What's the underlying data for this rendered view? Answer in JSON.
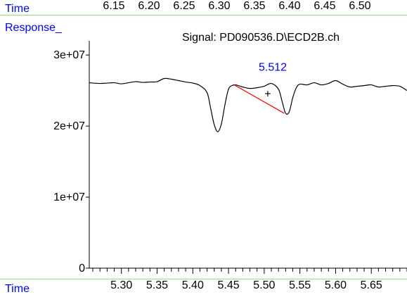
{
  "header": {
    "time_label": "Time",
    "response_label": "Response_",
    "top_ticks": [
      "6.15",
      "6.20",
      "6.25",
      "6.30",
      "6.35",
      "6.40",
      "6.45",
      "6.50"
    ]
  },
  "footer": {
    "time_label": "Time"
  },
  "colors": {
    "label_blue": "#0000ee",
    "trace": "#000000",
    "baseline": "#ee0000",
    "rule": "#8ee28e"
  },
  "chart_data": {
    "type": "line",
    "title": "Signal: PD090536.D\\ECD2B.ch",
    "xlabel": "Time",
    "ylabel": "Response_",
    "xlim": [
      5.255,
      5.7
    ],
    "ylim": [
      0,
      32000000
    ],
    "y_ticks": [
      0,
      10000000,
      20000000,
      30000000
    ],
    "y_tick_labels": [
      "0",
      "1e+07",
      "2e+07",
      "3e+07"
    ],
    "x_tick_labels": [
      "5.30",
      "5.35",
      "5.40",
      "5.45",
      "5.50",
      "5.55",
      "5.60",
      "5.65"
    ],
    "x_ticks": [
      5.3,
      5.35,
      5.4,
      5.45,
      5.5,
      5.55,
      5.6,
      5.65
    ],
    "x_minor_step": 0.01,
    "series": [
      {
        "x": [
          5.255,
          5.27,
          5.28,
          5.29,
          5.3,
          5.31,
          5.32,
          5.33,
          5.34,
          5.35,
          5.36,
          5.37,
          5.38,
          5.39,
          5.4,
          5.41,
          5.42,
          5.425,
          5.43,
          5.435,
          5.44,
          5.445,
          5.45,
          5.455,
          5.46,
          5.47,
          5.48,
          5.49,
          5.5,
          5.51,
          5.52,
          5.525,
          5.53,
          5.535,
          5.54,
          5.545,
          5.55,
          5.56,
          5.57,
          5.58,
          5.59,
          5.6,
          5.61,
          5.62,
          5.63,
          5.64,
          5.65,
          5.66,
          5.67,
          5.68,
          5.69,
          5.7
        ],
        "y": [
          26100000,
          26000000,
          26050000,
          26100000,
          25950000,
          26100000,
          26250000,
          26150000,
          26200000,
          26250000,
          26700000,
          26600000,
          26400000,
          26200000,
          26050000,
          25700000,
          24700000,
          22500000,
          20200000,
          19200000,
          20300000,
          23000000,
          25200000,
          25700000,
          25800000,
          25500000,
          25300000,
          25400000,
          25600000,
          26000000,
          25200000,
          23500000,
          21800000,
          22000000,
          24000000,
          25400000,
          25900000,
          25800000,
          26100000,
          25800000,
          26000000,
          26400000,
          25900000,
          25500000,
          25600000,
          25700000,
          25800000,
          25500000,
          25600000,
          25700000,
          25600000,
          25000000
        ]
      }
    ],
    "annotations": [
      {
        "type": "peak_label",
        "text": "5.512",
        "x": 5.512,
        "y": 28300000
      },
      {
        "type": "apex_marker",
        "text": "+",
        "x": 5.505,
        "y": 24600000
      },
      {
        "type": "integration_baseline",
        "x": [
          5.458,
          5.528
        ],
        "y": [
          25800000,
          21800000
        ]
      }
    ]
  }
}
